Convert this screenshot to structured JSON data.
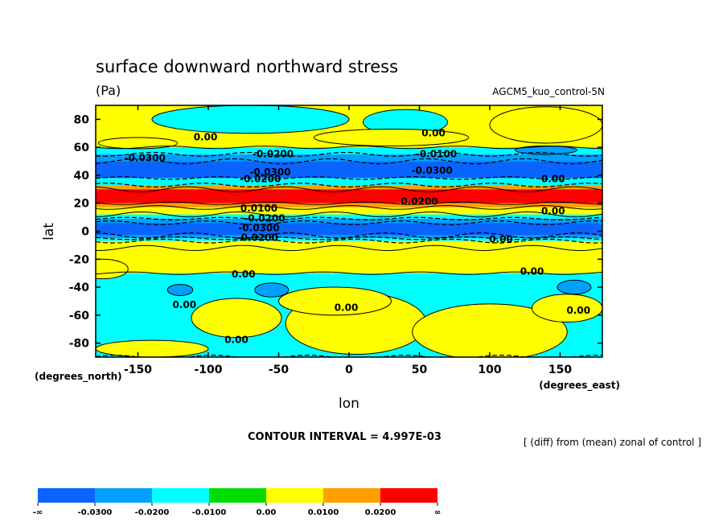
{
  "chart_data": {
    "type": "heatmap",
    "title": "surface downward northward stress",
    "units": "(Pa)",
    "dataset": "AGCM5_kuo_control-5N",
    "xlabel": "lon",
    "ylabel": "lat",
    "x_note": "(degrees_east)",
    "y_note": "(degrees_north)",
    "xlim": [
      -180,
      180
    ],
    "ylim": [
      -90,
      90
    ],
    "x_ticks": [
      "-150",
      "-100",
      "-50",
      "0",
      "50",
      "100",
      "150"
    ],
    "y_ticks": [
      "80",
      "60",
      "40",
      "20",
      "0",
      "-20",
      "-40",
      "-60",
      "-80"
    ],
    "contour_interval": "CONTOUR INTERVAL = 4.997E-03",
    "description": "[ (diff) from (mean) zonal of control ]",
    "colorbar": {
      "colors": [
        "#0a64ff",
        "#00a0ff",
        "#00ffff",
        "#00dc00",
        "#ffff00",
        "#ffa000",
        "#ff0000"
      ],
      "labels": [
        "-∞",
        "-0.0300",
        "-0.0200",
        "-0.0100",
        "0.00",
        "0.0100",
        "0.0200",
        "∞"
      ]
    },
    "lat_bands": [
      {
        "lat_min": 60,
        "lat_max": 90,
        "level": "0.00"
      },
      {
        "lat_min": 55,
        "lat_max": 60,
        "level": "-0.0100"
      },
      {
        "lat_min": 50,
        "lat_max": 55,
        "level": "-0.0200"
      },
      {
        "lat_min": 38,
        "lat_max": 50,
        "level": "-0.0300"
      },
      {
        "lat_min": 33,
        "lat_max": 38,
        "level": "-0.0100"
      },
      {
        "lat_min": 30,
        "lat_max": 33,
        "level": "0.0100"
      },
      {
        "lat_min": 20,
        "lat_max": 30,
        "level": "0.0200"
      },
      {
        "lat_min": 17,
        "lat_max": 20,
        "level": "0.0100"
      },
      {
        "lat_min": 12,
        "lat_max": 17,
        "level": "0.00"
      },
      {
        "lat_min": 9,
        "lat_max": 12,
        "level": "-0.0100"
      },
      {
        "lat_min": 6,
        "lat_max": 9,
        "level": "-0.0200"
      },
      {
        "lat_min": -3,
        "lat_max": 6,
        "level": "-0.0300"
      },
      {
        "lat_min": -5,
        "lat_max": -3,
        "level": "-0.0200"
      },
      {
        "lat_min": -7,
        "lat_max": -5,
        "level": "-0.0100"
      },
      {
        "lat_min": -12,
        "lat_max": -7,
        "level": "0.00"
      },
      {
        "lat_min": -30,
        "lat_max": -12,
        "level": "0.00"
      },
      {
        "lat_min": -90,
        "lat_max": -30,
        "level": "-0.0100"
      }
    ],
    "patches": [
      {
        "lon": -70,
        "lat": 80,
        "rlon": 70,
        "rlat": 10,
        "level": "-0.0100"
      },
      {
        "lon": 40,
        "lat": 78,
        "rlon": 30,
        "rlat": 9,
        "level": "-0.0100"
      },
      {
        "lon": 140,
        "lat": 76,
        "rlon": 40,
        "rlat": 13,
        "level": "0.00"
      },
      {
        "lon": 30,
        "lat": 67,
        "rlon": 55,
        "rlat": 6,
        "level": "0.00"
      },
      {
        "lon": -150,
        "lat": 63,
        "rlon": 28,
        "rlat": 4,
        "level": "0.00"
      },
      {
        "lon": -175,
        "lat": -27,
        "rlon": 18,
        "rlat": 7,
        "level": "0.00"
      },
      {
        "lon": -80,
        "lat": -62,
        "rlon": 32,
        "rlat": 14,
        "level": "0.00"
      },
      {
        "lon": 5,
        "lat": -66,
        "rlon": 50,
        "rlat": 22,
        "level": "0.00"
      },
      {
        "lon": -10,
        "lat": -50,
        "rlon": 40,
        "rlat": 10,
        "level": "0.00"
      },
      {
        "lon": 100,
        "lat": -72,
        "rlon": 55,
        "rlat": 20,
        "level": "0.00"
      },
      {
        "lon": 155,
        "lat": -55,
        "rlon": 25,
        "rlat": 10,
        "level": "0.00"
      },
      {
        "lon": -140,
        "lat": -84,
        "rlon": 40,
        "rlat": 6,
        "level": "0.00"
      },
      {
        "lon": -55,
        "lat": -42,
        "rlon": 12,
        "rlat": 5,
        "level": "-0.0200"
      },
      {
        "lon": 160,
        "lat": -40,
        "rlon": 12,
        "rlat": 5,
        "level": "-0.0200"
      },
      {
        "lon": -120,
        "lat": -42,
        "rlon": 9,
        "rlat": 4,
        "level": "-0.0200"
      },
      {
        "lon": 140,
        "lat": 58,
        "rlon": 22,
        "rlat": 3,
        "level": "-0.0200"
      }
    ],
    "contour_labels": [
      {
        "text": "0.00",
        "lon": -102,
        "lat": 65
      },
      {
        "text": "0.00",
        "lon": 60,
        "lat": 68
      },
      {
        "text": "-0.0300",
        "lon": -145,
        "lat": 50
      },
      {
        "text": "-0.0200",
        "lon": -54,
        "lat": 53
      },
      {
        "text": "-0.0100",
        "lon": 62,
        "lat": 53
      },
      {
        "text": "-0.0300",
        "lon": 59,
        "lat": 41
      },
      {
        "text": "-0.0300",
        "lon": -56,
        "lat": 40
      },
      {
        "text": "-0.0200",
        "lon": -63,
        "lat": 35
      },
      {
        "text": "0.00",
        "lon": 145,
        "lat": 35
      },
      {
        "text": "0.0200",
        "lon": 50,
        "lat": 19
      },
      {
        "text": "0.0100",
        "lon": -64,
        "lat": 14
      },
      {
        "text": "0.00",
        "lon": 145,
        "lat": 12
      },
      {
        "text": "-0.0200",
        "lon": -60,
        "lat": 7
      },
      {
        "text": "-0.0300",
        "lon": -64,
        "lat": 0
      },
      {
        "text": "-0.0200",
        "lon": -65,
        "lat": -7
      },
      {
        "text": "0.00",
        "lon": 108,
        "lat": -8
      },
      {
        "text": "0.00",
        "lon": -75,
        "lat": -33
      },
      {
        "text": "0.00",
        "lon": 130,
        "lat": -31
      },
      {
        "text": "0.00",
        "lon": -117,
        "lat": -55
      },
      {
        "text": "0.00",
        "lon": -2,
        "lat": -57
      },
      {
        "text": "0.00",
        "lon": 163,
        "lat": -59
      },
      {
        "text": "0.00",
        "lon": -80,
        "lat": -80
      }
    ]
  }
}
